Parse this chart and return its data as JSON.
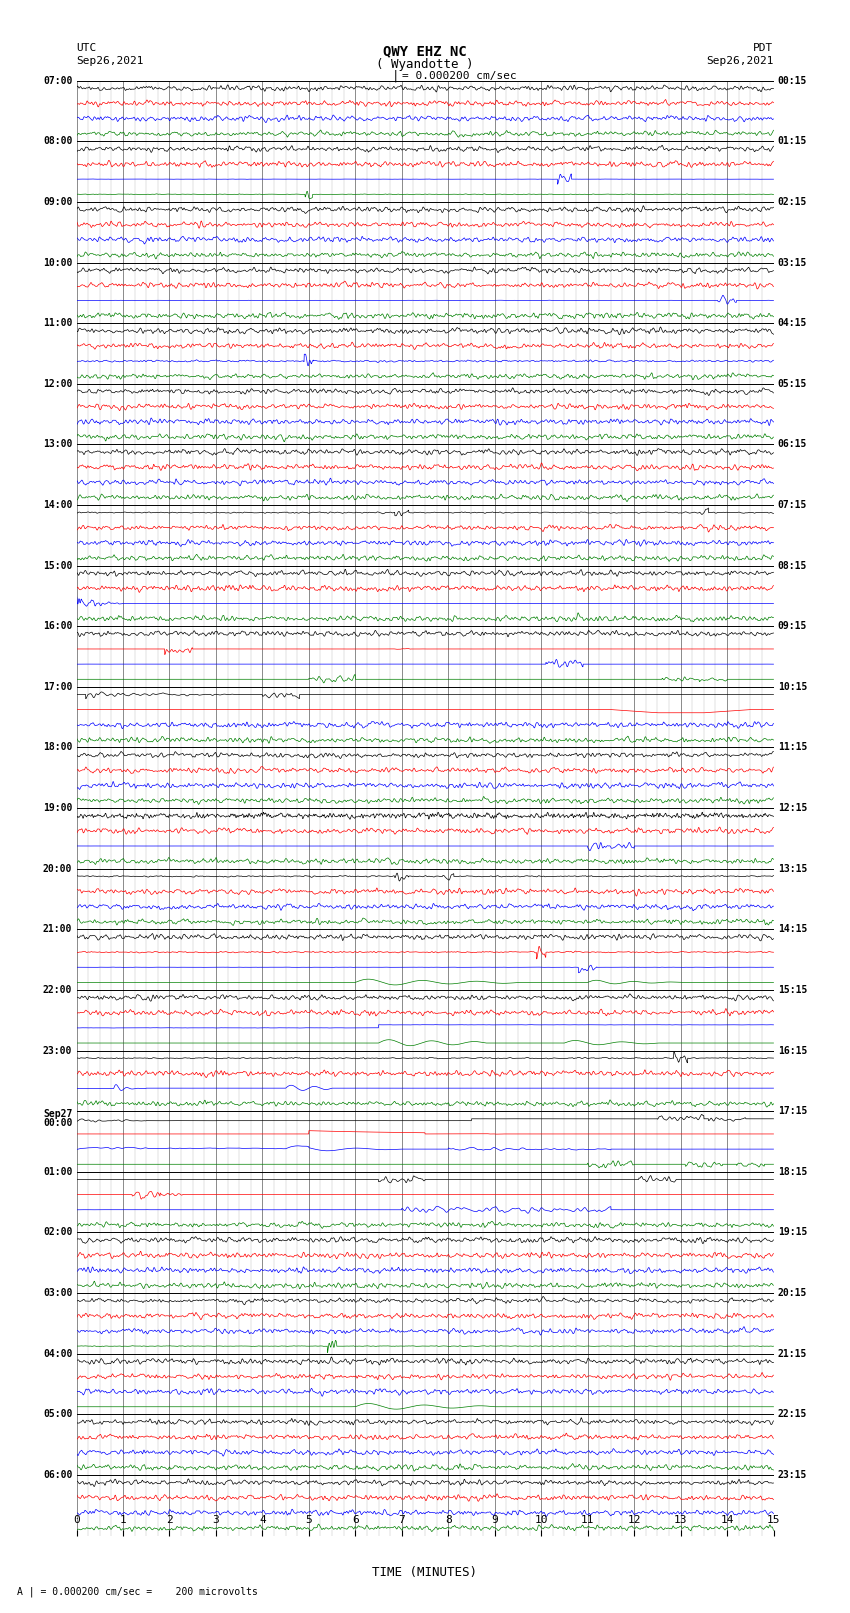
{
  "title_line1": "QWY EHZ NC",
  "title_line2": "( Wyandotte )",
  "scale_text": "| = 0.000200 cm/sec",
  "utc_label": "UTC",
  "utc_date": "Sep26,2021",
  "pdt_label": "PDT",
  "pdt_date": "Sep26,2021",
  "xlabel": "TIME (MINUTES)",
  "footer_text": "A | = 0.000200 cm/sec =    200 microvolts",
  "xlim": [
    0,
    15
  ],
  "num_rows": 24,
  "traces_per_row": 4,
  "left_times": [
    "07:00",
    "08:00",
    "09:00",
    "10:00",
    "11:00",
    "12:00",
    "13:00",
    "14:00",
    "15:00",
    "16:00",
    "17:00",
    "18:00",
    "19:00",
    "20:00",
    "21:00",
    "22:00",
    "23:00",
    "Sep27\n00:00",
    "01:00",
    "02:00",
    "03:00",
    "04:00",
    "05:00",
    "06:00"
  ],
  "right_times": [
    "00:15",
    "01:15",
    "02:15",
    "03:15",
    "04:15",
    "05:15",
    "06:15",
    "07:15",
    "08:15",
    "09:15",
    "10:15",
    "11:15",
    "12:15",
    "13:15",
    "14:15",
    "15:15",
    "16:15",
    "17:15",
    "18:15",
    "19:15",
    "20:15",
    "21:15",
    "22:15",
    "23:15"
  ],
  "trace_colors": [
    "black",
    "red",
    "blue",
    "green"
  ],
  "background_color": "white",
  "grid_major_color": "#888888",
  "grid_minor_color": "#cccccc",
  "fig_width": 8.5,
  "fig_height": 16.13,
  "dpi": 100
}
